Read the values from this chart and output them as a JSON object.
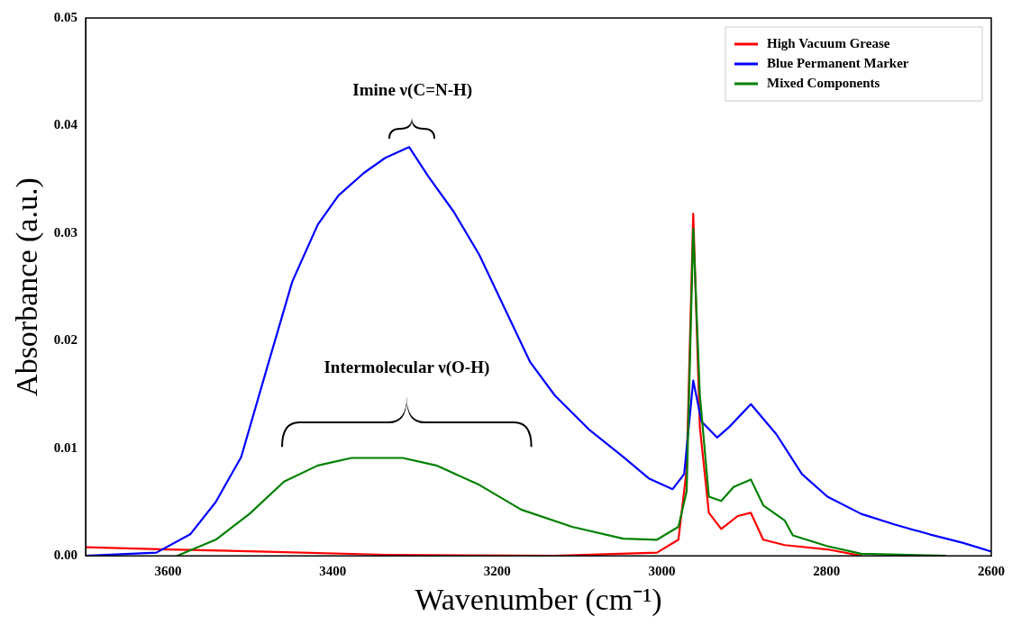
{
  "chart_data": {
    "type": "line",
    "xlabel": "Wavenumber (cm⁻¹)",
    "ylabel": "Absorbance (a.u.)",
    "xlim": [
      3700,
      2600
    ],
    "xticks": [
      3600,
      3400,
      3200,
      3000,
      2800,
      2600
    ],
    "ylim": [
      0,
      0.05
    ],
    "yticks": [
      {
        "value": 0,
        "label": "0.00"
      },
      {
        "value": 0.01,
        "label": "0.01"
      },
      {
        "value": 0.02,
        "label": "0.02"
      },
      {
        "value": 0.03,
        "label": "0.03"
      },
      {
        "value": 0.04,
        "label": "0.04"
      },
      {
        "value": 0.05,
        "label": "0.05"
      }
    ],
    "grid": false,
    "legend": "top right",
    "marker": "none",
    "line_style": "solid",
    "annotations": [
      "Imine ν(C=N-H)",
      "Intermolecular ν(O-H)"
    ],
    "series": [
      {
        "name": "High Vacuum Grease",
        "color": "#ff0000",
        "x": [
          3700,
          3600,
          3491,
          3336,
          3130,
          3006,
          2980,
          2970,
          2962,
          2954,
          2943,
          2928,
          2908,
          2892,
          2877,
          2851,
          2799,
          2758
        ],
        "values": [
          0.0008,
          0.0006,
          0.0004,
          0.0001,
          0,
          0.0003,
          0.0015,
          0.008,
          0.0318,
          0.012,
          0.004,
          0.0025,
          0.0037,
          0.004,
          0.0015,
          0.001,
          0.0006,
          0
        ]
      },
      {
        "name": "Blue Permanent Marker",
        "color": "#0000ff",
        "x": [
          3700,
          3614,
          3573,
          3542,
          3511,
          3480,
          3449,
          3418,
          3393,
          3362,
          3336,
          3307,
          3284,
          3253,
          3222,
          3191,
          3160,
          3130,
          3088,
          3047,
          3016,
          2987,
          2973,
          2962,
          2952,
          2933,
          2918,
          2892,
          2861,
          2830,
          2799,
          2758,
          2717,
          2675,
          2634,
          2600
        ],
        "values": [
          0,
          0.0003,
          0.002,
          0.005,
          0.0092,
          0.0174,
          0.0255,
          0.0308,
          0.0335,
          0.0356,
          0.037,
          0.038,
          0.0353,
          0.032,
          0.028,
          0.023,
          0.018,
          0.0149,
          0.0117,
          0.0092,
          0.0072,
          0.0062,
          0.0076,
          0.0163,
          0.0125,
          0.011,
          0.012,
          0.0141,
          0.0113,
          0.0076,
          0.0055,
          0.0039,
          0.0029,
          0.002,
          0.0012,
          0.0004
        ]
      },
      {
        "name": "Mixed Components",
        "color": "#008000",
        "x": [
          3589,
          3542,
          3501,
          3459,
          3418,
          3377,
          3315,
          3274,
          3222,
          3171,
          3109,
          3047,
          3006,
          2980,
          2970,
          2962,
          2954,
          2943,
          2928,
          2913,
          2892,
          2877,
          2851,
          2841,
          2799,
          2758,
          2655
        ],
        "values": [
          0,
          0.0015,
          0.0039,
          0.0069,
          0.0084,
          0.0091,
          0.0091,
          0.0084,
          0.0066,
          0.0043,
          0.0027,
          0.0016,
          0.0015,
          0.0027,
          0.006,
          0.0304,
          0.015,
          0.0055,
          0.0051,
          0.0064,
          0.0071,
          0.0047,
          0.0033,
          0.0019,
          0.0009,
          0.0002,
          0
        ]
      }
    ]
  }
}
